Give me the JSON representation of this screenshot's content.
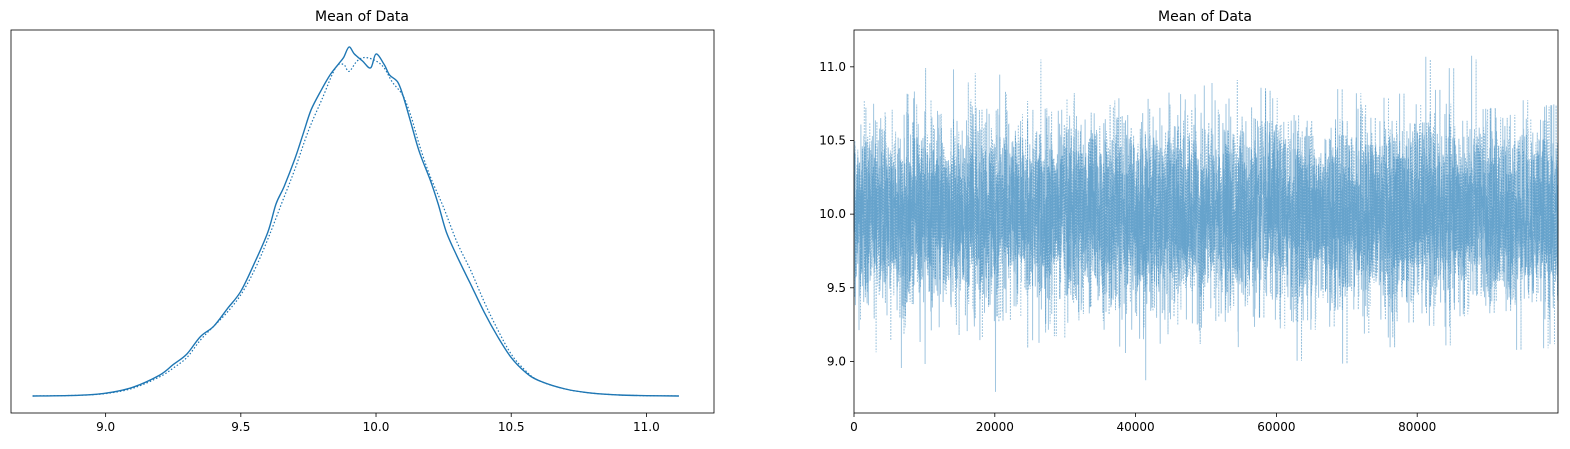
{
  "chart_data": [
    {
      "type": "line",
      "title": "Mean of Data",
      "xlabel": "",
      "ylabel": "",
      "xlim": [
        8.65,
        11.25
      ],
      "x_ticks": [
        "9.0",
        "9.5",
        "10.0",
        "10.5",
        "11.0"
      ],
      "y_ticks": [],
      "grid": false,
      "series": [
        {
          "style": "solid",
          "color": "#1f77b4",
          "x": [
            8.73,
            8.9,
            9.0,
            9.1,
            9.2,
            9.25,
            9.3,
            9.35,
            9.4,
            9.45,
            9.5,
            9.55,
            9.6,
            9.63,
            9.66,
            9.7,
            9.73,
            9.76,
            9.8,
            9.83,
            9.86,
            9.88,
            9.9,
            9.92,
            9.95,
            9.98,
            10.0,
            10.03,
            10.05,
            10.08,
            10.1,
            10.13,
            10.16,
            10.2,
            10.23,
            10.26,
            10.3,
            10.35,
            10.4,
            10.45,
            10.5,
            10.55,
            10.6,
            10.7,
            10.8,
            10.9,
            11.0,
            11.12
          ],
          "y": [
            0.0,
            0.002,
            0.008,
            0.025,
            0.06,
            0.09,
            0.12,
            0.17,
            0.2,
            0.25,
            0.3,
            0.38,
            0.47,
            0.55,
            0.6,
            0.68,
            0.75,
            0.82,
            0.88,
            0.92,
            0.95,
            0.97,
            1.0,
            0.98,
            0.96,
            0.94,
            0.98,
            0.95,
            0.92,
            0.9,
            0.86,
            0.78,
            0.7,
            0.62,
            0.55,
            0.47,
            0.4,
            0.32,
            0.24,
            0.17,
            0.11,
            0.07,
            0.045,
            0.02,
            0.008,
            0.003,
            0.001,
            0.0
          ]
        },
        {
          "style": "dotted",
          "color": "#1f77b4",
          "x": [
            8.73,
            8.9,
            9.0,
            9.1,
            9.2,
            9.25,
            9.3,
            9.35,
            9.4,
            9.45,
            9.5,
            9.55,
            9.6,
            9.65,
            9.7,
            9.75,
            9.8,
            9.85,
            9.88,
            9.9,
            9.93,
            9.96,
            10.0,
            10.03,
            10.06,
            10.1,
            10.13,
            10.16,
            10.2,
            10.25,
            10.3,
            10.35,
            10.4,
            10.45,
            10.5,
            10.55,
            10.6,
            10.7,
            10.8,
            10.9,
            11.0,
            11.12
          ],
          "y": [
            0.0,
            0.002,
            0.007,
            0.022,
            0.055,
            0.08,
            0.11,
            0.16,
            0.2,
            0.24,
            0.29,
            0.36,
            0.45,
            0.55,
            0.65,
            0.76,
            0.85,
            0.94,
            0.95,
            0.93,
            0.96,
            0.97,
            0.96,
            0.94,
            0.9,
            0.86,
            0.8,
            0.72,
            0.63,
            0.54,
            0.44,
            0.36,
            0.27,
            0.19,
            0.12,
            0.075,
            0.045,
            0.02,
            0.008,
            0.003,
            0.001,
            0.0
          ]
        }
      ]
    },
    {
      "type": "line",
      "title": "Mean of Data",
      "xlabel": "",
      "ylabel": "",
      "xlim": [
        0,
        100000
      ],
      "ylim": [
        8.65,
        11.25
      ],
      "x_ticks": [
        "0",
        "20000",
        "40000",
        "60000",
        "80000"
      ],
      "y_ticks": [
        "9.0",
        "9.5",
        "10.0",
        "10.5",
        "11.0"
      ],
      "grid": false,
      "series": [
        {
          "style": "solid",
          "color": "#1f77b4",
          "n_samples": 100000,
          "mean": 10.0,
          "sd": 0.3,
          "min": 8.73,
          "max": 11.12
        },
        {
          "style": "dotted",
          "color": "#1f77b4",
          "n_samples": 100000,
          "mean": 10.0,
          "sd": 0.3,
          "min": 8.9,
          "max": 11.05
        }
      ]
    }
  ]
}
